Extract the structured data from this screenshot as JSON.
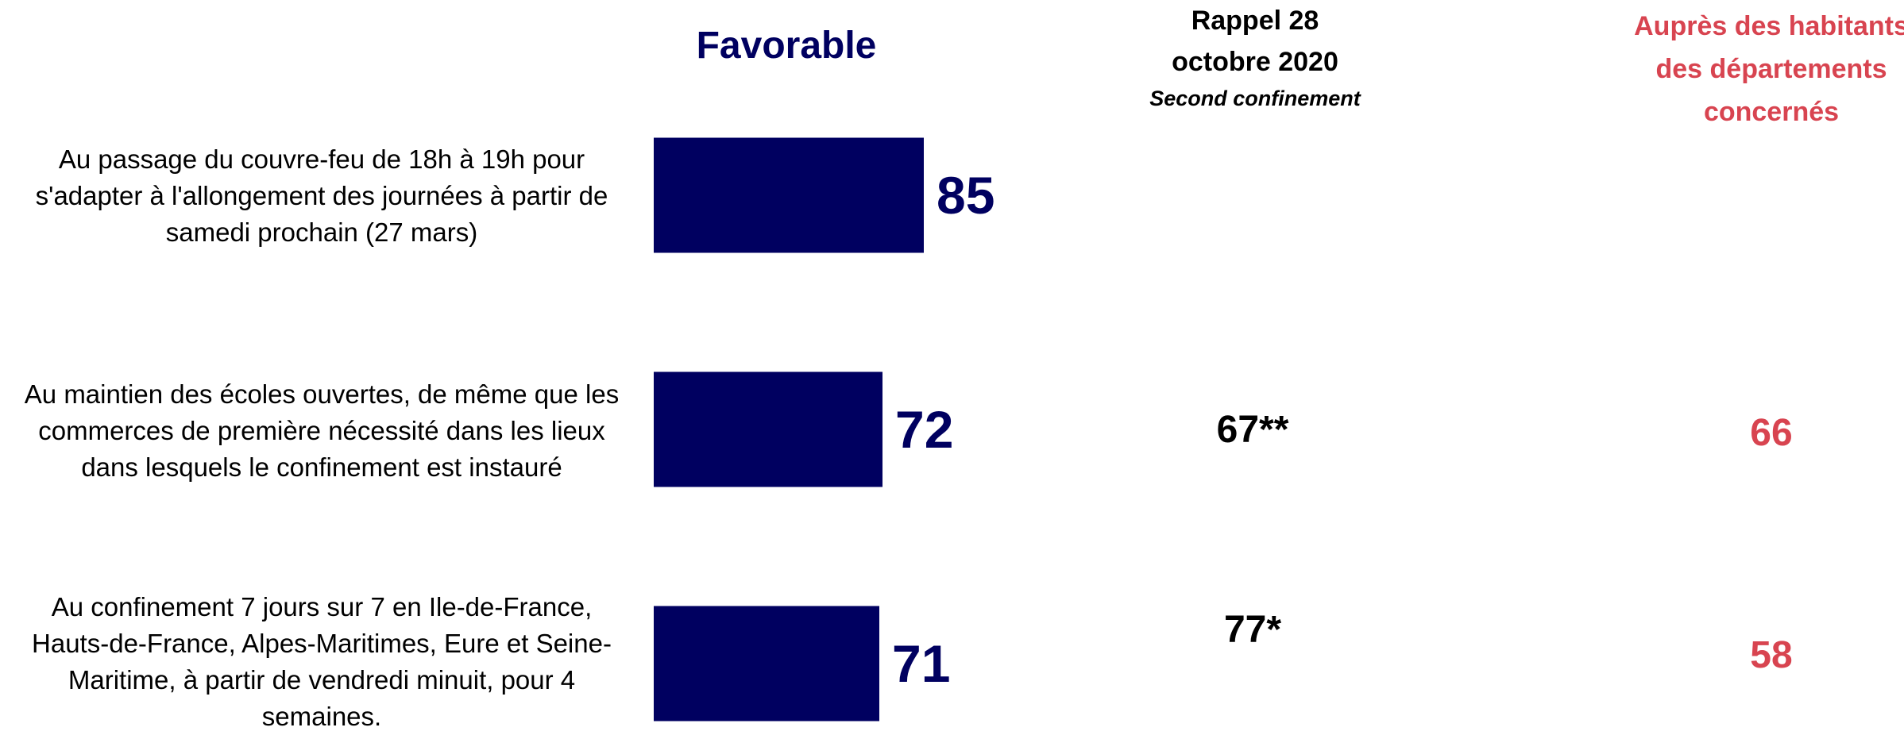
{
  "headers": {
    "favorable": "Favorable",
    "rappel_line1": "Rappel 28",
    "rappel_line2": "octobre 2020",
    "rappel_sub": "Second confinement",
    "aupres_line1": "Auprès des habitants",
    "aupres_line2": "des départements",
    "aupres_line3": "concernés"
  },
  "rows": [
    {
      "label_lines": [
        "Au passage du couvre-feu de 18h à 19h pour",
        "s'adapter à l'allongement des journées à partir de",
        "samedi prochain (27 mars)"
      ],
      "rappel": "",
      "aupres": ""
    },
    {
      "label_lines": [
        "Au maintien des écoles ouvertes, de même que les",
        "commerces de première nécessité dans les lieux",
        "dans lesquels le confinement est instauré"
      ],
      "rappel": "67**",
      "aupres": "66"
    },
    {
      "label_lines": [
        "Au confinement 7 jours sur 7 en Ile-de-France,",
        "Hauts-de-France, Alpes-Maritimes, Eure et Seine-",
        "Maritime, à partir de vendredi minuit, pour 4",
        "semaines."
      ],
      "rappel": "77*",
      "aupres": "58"
    }
  ],
  "chart_data": {
    "type": "bar",
    "orientation": "horizontal",
    "categories": [
      "Au passage du couvre-feu de 18h à 19h pour s'adapter à l'allongement des journées à partir de samedi prochain (27 mars)",
      "Au maintien des écoles ouvertes, de même que les commerces de première nécessité dans les lieux dans lesquels le confinement est instauré",
      "Au confinement 7 jours sur 7 en Ile-de-France, Hauts-de-France, Alpes-Maritimes, Eure et Seine-Maritime, à partir de vendredi minuit, pour 4 semaines."
    ],
    "series": [
      {
        "name": "Favorable",
        "values": [
          85,
          72,
          71
        ]
      }
    ],
    "data_labels": [
      "85",
      "72",
      "71"
    ],
    "xlim": [
      0,
      100
    ],
    "grid": false,
    "legend": "none",
    "colors": {
      "bar": "#000060",
      "label": "#000060",
      "accent_red": "#d84450"
    }
  }
}
